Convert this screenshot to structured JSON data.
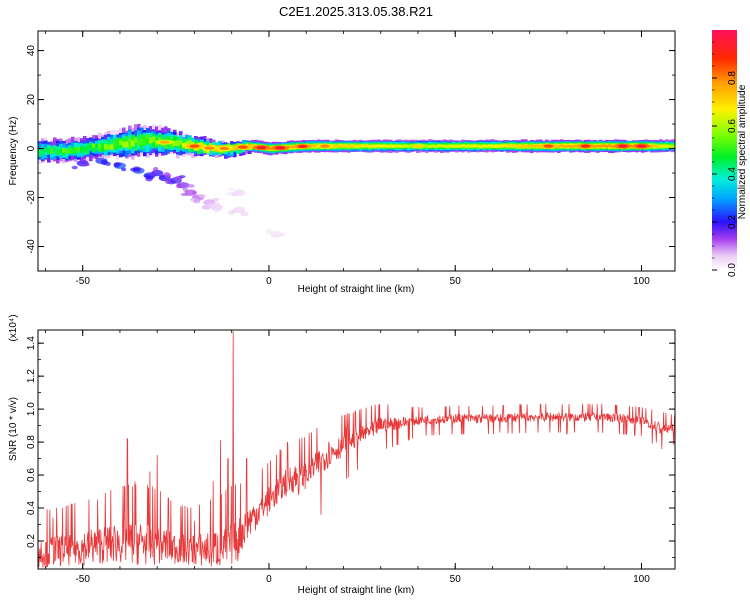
{
  "title": "C2E1.2025.313.05.38.R21",
  "colors": {
    "axis": "#000000",
    "snr_line": "#e8383a",
    "background": "#ffffff"
  },
  "chart_data": [
    {
      "type": "heatmap",
      "name": "spectrogram",
      "xlabel": "Height of straight line (km)",
      "ylabel": "Frequency (Hz)",
      "xlim": [
        -62,
        109
      ],
      "ylim": [
        -50,
        48
      ],
      "xticks": [
        -50,
        0,
        50,
        100
      ],
      "xtick_labels": [
        "-50",
        "0",
        "50",
        "100"
      ],
      "yticks": [
        -40,
        -20,
        0,
        20,
        40
      ],
      "ytick_labels": [
        "-40",
        "-20",
        "0",
        "20",
        "40"
      ],
      "ridge": {
        "x": [
          -62,
          -55,
          -50,
          -45,
          -40,
          -35,
          -30,
          -25,
          -20,
          -15,
          -10,
          -5,
          0,
          10,
          20,
          30,
          40,
          50,
          60,
          70,
          80,
          90,
          100,
          109
        ],
        "center_hz": [
          -1,
          -1,
          0,
          1,
          2,
          3,
          3,
          2,
          1,
          0,
          0,
          1,
          0,
          1,
          1,
          1,
          1,
          1,
          1,
          1,
          1,
          1,
          1,
          1
        ],
        "halfwidth_hz": [
          5,
          4.5,
          4.5,
          5,
          6,
          6.5,
          6,
          5,
          4,
          3.5,
          3,
          2.5,
          2.5,
          2.5,
          2.5,
          2.5,
          2.5,
          2.5,
          2.5,
          2.5,
          2.5,
          2.5,
          2.5,
          2.5
        ],
        "peak_amplitude": [
          0.55,
          0.6,
          0.6,
          0.62,
          0.65,
          0.66,
          0.64,
          0.66,
          0.82,
          0.85,
          0.82,
          0.85,
          0.95,
          0.9,
          0.85,
          0.8,
          0.75,
          0.78,
          0.8,
          0.88,
          0.92,
          0.95,
          0.95,
          0.7
        ]
      },
      "hotspots": [
        {
          "x": -28,
          "hz": 2,
          "amp": 0.75
        },
        {
          "x": -20,
          "hz": 2,
          "amp": 0.85
        },
        {
          "x": -16,
          "hz": 0,
          "amp": 0.8
        },
        {
          "x": -12,
          "hz": 0,
          "amp": 0.8
        },
        {
          "x": -7,
          "hz": 1,
          "amp": 0.85
        },
        {
          "x": -2,
          "hz": 0,
          "amp": 0.95
        },
        {
          "x": 3,
          "hz": 0,
          "amp": 0.95
        },
        {
          "x": 9,
          "hz": 1,
          "amp": 0.9
        },
        {
          "x": 15,
          "hz": 0,
          "amp": 0.8
        },
        {
          "x": 40,
          "hz": 1,
          "amp": 0.7
        },
        {
          "x": 75,
          "hz": 1,
          "amp": 0.85
        },
        {
          "x": 85,
          "hz": 1,
          "amp": 0.9
        },
        {
          "x": 95,
          "hz": 1,
          "amp": 0.95
        },
        {
          "x": 100,
          "hz": 1,
          "amp": 0.95
        }
      ],
      "scatter_blobs": [
        {
          "x": -50,
          "hz": -6,
          "amp": 0.2
        },
        {
          "x": -45,
          "hz": -5,
          "amp": 0.22
        },
        {
          "x": -40,
          "hz": -7,
          "amp": 0.25
        },
        {
          "x": -35,
          "hz": -9,
          "amp": 0.25
        },
        {
          "x": -32,
          "hz": -11,
          "amp": 0.22
        },
        {
          "x": -30,
          "hz": -10,
          "amp": 0.2
        },
        {
          "x": -28,
          "hz": -12,
          "amp": 0.2
        },
        {
          "x": -25,
          "hz": -13,
          "amp": 0.18
        },
        {
          "x": -23,
          "hz": -15,
          "amp": 0.15
        },
        {
          "x": -21,
          "hz": -18,
          "amp": 0.12
        },
        {
          "x": -19,
          "hz": -20,
          "amp": 0.1
        },
        {
          "x": -16,
          "hz": -22,
          "amp": 0.08
        },
        {
          "x": -14,
          "hz": -24,
          "amp": 0.06
        },
        {
          "x": -8,
          "hz": -25,
          "amp": 0.05
        },
        {
          "x": -8,
          "hz": -18,
          "amp": 0.05
        },
        {
          "x": 2,
          "hz": -35,
          "amp": 0.04
        }
      ],
      "colorbar": {
        "label": "Normalized spectral amplitude",
        "range": [
          0,
          1
        ],
        "ticks": [
          0.0,
          0.2,
          0.4,
          0.6,
          0.8
        ],
        "tick_labels": [
          "0.0",
          "0.2",
          "0.4",
          "0.6",
          "0.8"
        ]
      }
    },
    {
      "type": "line",
      "name": "snr",
      "xlabel": "Height of straight line (km)",
      "ylabel": "SNR (10 * v/v)",
      "yscale_note": "(x10⁴)",
      "xlim": [
        -62,
        109
      ],
      "ylim": [
        0.03,
        1.48
      ],
      "xticks": [
        -50,
        0,
        50,
        100
      ],
      "xtick_labels": [
        "-50",
        "0",
        "50",
        "100"
      ],
      "yticks": [
        0.2,
        0.4,
        0.6,
        0.8,
        1.0,
        1.2,
        1.4
      ],
      "ytick_labels": [
        "0.2",
        "0.4",
        "0.6",
        "0.8",
        "1.0",
        "1.2",
        "1.4"
      ],
      "envelope": {
        "x": [
          -62,
          -55,
          -50,
          -45,
          -40,
          -35,
          -30,
          -25,
          -20,
          -15,
          -10,
          -5,
          0,
          5,
          10,
          15,
          20,
          25,
          30,
          35,
          40,
          50,
          60,
          70,
          80,
          90,
          100,
          105,
          109
        ],
        "base": [
          0.12,
          0.14,
          0.15,
          0.17,
          0.18,
          0.18,
          0.17,
          0.15,
          0.14,
          0.14,
          0.16,
          0.32,
          0.44,
          0.56,
          0.6,
          0.7,
          0.78,
          0.84,
          0.9,
          0.91,
          0.93,
          0.94,
          0.94,
          0.95,
          0.95,
          0.95,
          0.93,
          0.88,
          0.88
        ],
        "noise": [
          0.1,
          0.1,
          0.11,
          0.12,
          0.13,
          0.14,
          0.13,
          0.1,
          0.1,
          0.12,
          0.14,
          0.1,
          0.09,
          0.09,
          0.09,
          0.08,
          0.07,
          0.06,
          0.05,
          0.04,
          0.03,
          0.03,
          0.03,
          0.03,
          0.03,
          0.03,
          0.03,
          0.04,
          0.03
        ]
      },
      "spikes": [
        {
          "x": -58,
          "y": 0.34
        },
        {
          "x": -46,
          "y": 0.45
        },
        {
          "x": -38,
          "y": 0.82
        },
        {
          "x": -36,
          "y": 0.56
        },
        {
          "x": -32,
          "y": 0.62
        },
        {
          "x": -30,
          "y": 0.72
        },
        {
          "x": -27,
          "y": 0.46
        },
        {
          "x": -20,
          "y": 0.32
        },
        {
          "x": -15,
          "y": 0.56
        },
        {
          "x": -13,
          "y": 0.81
        },
        {
          "x": -11,
          "y": 0.7
        },
        {
          "x": -9.6,
          "y": 1.47
        },
        {
          "x": -8.4,
          "y": 0.08
        },
        {
          "x": -6,
          "y": 0.7
        },
        {
          "x": 2,
          "y": 0.72
        },
        {
          "x": 8,
          "y": 0.48
        },
        {
          "x": 14,
          "y": 0.36
        },
        {
          "x": 16,
          "y": 0.8
        },
        {
          "x": 21,
          "y": 0.89
        },
        {
          "x": 28,
          "y": 0.84
        },
        {
          "x": 62,
          "y": 0.86
        },
        {
          "x": 80,
          "y": 0.85
        },
        {
          "x": 104,
          "y": 0.8
        },
        {
          "x": 105.5,
          "y": 0.76
        }
      ]
    }
  ]
}
